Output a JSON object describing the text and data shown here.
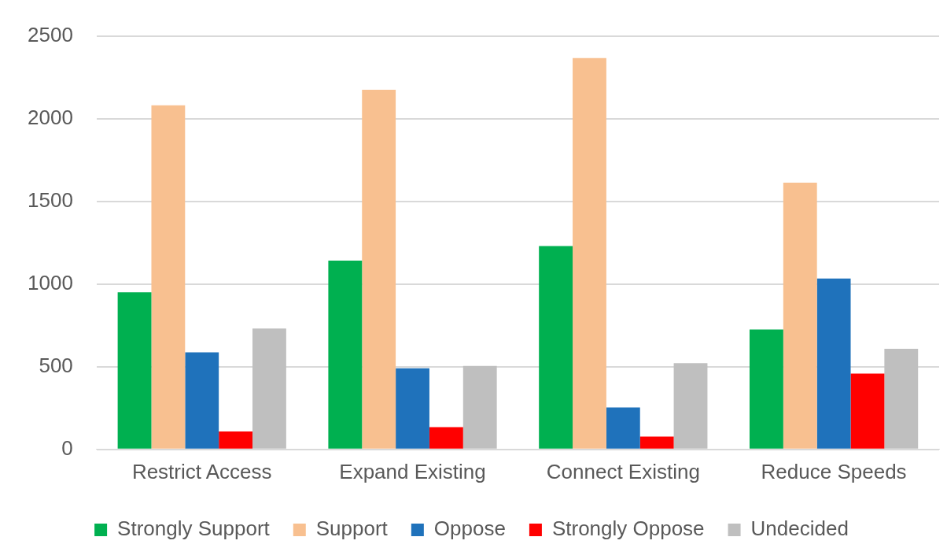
{
  "chart_data": {
    "type": "bar",
    "categories": [
      "Restrict Access",
      "Expand Existing",
      "Connect Existing",
      "Reduce Speeds"
    ],
    "series": [
      {
        "name": "Strongly Support",
        "color": "#00b050",
        "values": [
          950,
          1142,
          1230,
          725
        ]
      },
      {
        "name": "Support",
        "color": "#f8c090",
        "values": [
          2080,
          2174,
          2366,
          1613
        ]
      },
      {
        "name": "Oppose",
        "color": "#1f72bb",
        "values": [
          587,
          491,
          254,
          1033
        ]
      },
      {
        "name": "Strongly Oppose",
        "color": "#ff0000",
        "values": [
          109,
          135,
          78,
          458
        ]
      },
      {
        "name": "Undecided",
        "color": "#bfbfbf",
        "values": [
          731,
          505,
          521,
          608
        ]
      }
    ],
    "ylim": [
      0,
      2500
    ],
    "yticks": [
      0,
      500,
      1000,
      1500,
      2000,
      2500
    ],
    "grid": "y",
    "legend": "bottom"
  }
}
